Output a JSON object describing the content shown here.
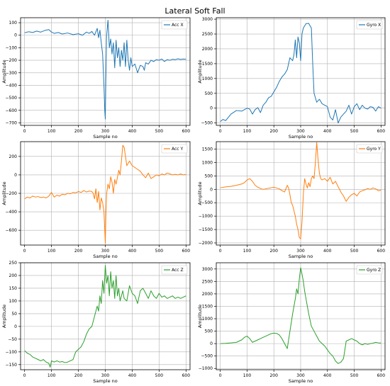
{
  "figure_title": "Lateral Soft Fall",
  "chart_data": [
    {
      "type": "line",
      "legend": "Acc X",
      "legend_position": "top-right",
      "color": "#1f77b4",
      "xlabel": "Sample no",
      "ylabel": "Amplitude",
      "xlim": [
        -15,
        615
      ],
      "ylim": [
        -720,
        140
      ],
      "xticks": [
        0,
        100,
        200,
        300,
        400,
        500,
        600
      ],
      "yticks": [
        100,
        0,
        -100,
        -200,
        -300,
        -400,
        -500,
        -600,
        -700
      ],
      "grid": true,
      "x": [
        0,
        15,
        30,
        45,
        60,
        75,
        90,
        100,
        110,
        125,
        140,
        160,
        180,
        200,
        215,
        230,
        240,
        250,
        260,
        270,
        275,
        280,
        285,
        290,
        295,
        298,
        300,
        302,
        305,
        310,
        315,
        320,
        325,
        330,
        335,
        340,
        345,
        350,
        355,
        360,
        365,
        370,
        375,
        380,
        385,
        390,
        395,
        400,
        410,
        420,
        430,
        440,
        445,
        450,
        460,
        470,
        480,
        490,
        500,
        510,
        520,
        530,
        540,
        550,
        560,
        570,
        580,
        590,
        600
      ],
      "y": [
        20,
        28,
        22,
        33,
        25,
        38,
        45,
        25,
        15,
        22,
        10,
        18,
        5,
        12,
        0,
        25,
        15,
        30,
        0,
        55,
        -20,
        40,
        -60,
        -150,
        -400,
        -600,
        -670,
        -350,
        0,
        120,
        -100,
        -30,
        -150,
        -60,
        -260,
        -40,
        -180,
        -100,
        -250,
        -120,
        -200,
        -60,
        -250,
        -40,
        -200,
        -280,
        -180,
        -250,
        -230,
        -300,
        -240,
        -250,
        -280,
        -220,
        -230,
        -200,
        -210,
        -195,
        -200,
        -190,
        -210,
        -195,
        -200,
        -192,
        -195,
        -188,
        -193,
        -190,
        -192
      ]
    },
    {
      "type": "line",
      "legend": "Gyro X",
      "legend_position": "top-right",
      "color": "#1f77b4",
      "xlabel": "Sample no",
      "ylabel": "Amplitude",
      "xlim": [
        -15,
        615
      ],
      "ylim": [
        -580,
        3050
      ],
      "xticks": [
        0,
        100,
        200,
        300,
        400,
        500,
        600
      ],
      "yticks": [
        3000,
        2500,
        2000,
        1500,
        1000,
        500,
        0,
        -500
      ],
      "grid": true,
      "x": [
        0,
        10,
        20,
        40,
        60,
        80,
        100,
        110,
        120,
        130,
        140,
        150,
        160,
        170,
        180,
        190,
        200,
        210,
        220,
        230,
        240,
        250,
        260,
        270,
        275,
        280,
        285,
        290,
        295,
        300,
        305,
        310,
        320,
        330,
        340,
        345,
        350,
        360,
        370,
        380,
        390,
        400,
        410,
        420,
        430,
        440,
        450,
        460,
        470,
        480,
        490,
        500,
        510,
        520,
        530,
        540,
        550,
        560,
        570,
        580,
        590,
        600
      ],
      "y": [
        -450,
        -380,
        -420,
        -200,
        -80,
        -100,
        0,
        -30,
        -200,
        -50,
        20,
        -150,
        100,
        200,
        350,
        400,
        550,
        700,
        900,
        1050,
        1150,
        1300,
        1700,
        1600,
        1800,
        2300,
        1700,
        2400,
        2200,
        1600,
        2500,
        2700,
        2850,
        2860,
        2700,
        1500,
        500,
        200,
        300,
        150,
        100,
        50,
        -300,
        -400,
        -50,
        -500,
        -300,
        -200,
        -100,
        100,
        -200,
        50,
        150,
        -50,
        100,
        0,
        -30,
        50,
        30,
        -100,
        50,
        0
      ]
    },
    {
      "type": "line",
      "legend": "Acc Y",
      "legend_position": "top-right",
      "color": "#ff7f0e",
      "xlabel": "Sample no",
      "ylabel": "Amplitude",
      "xlim": [
        -15,
        615
      ],
      "ylim": [
        -760,
        360
      ],
      "xticks": [
        0,
        100,
        200,
        300,
        400,
        500,
        600
      ],
      "yticks": [
        200,
        0,
        -200,
        -400,
        -600
      ],
      "grid": true,
      "x": [
        0,
        10,
        20,
        30,
        40,
        50,
        60,
        70,
        80,
        90,
        100,
        110,
        120,
        130,
        140,
        150,
        160,
        170,
        180,
        190,
        200,
        210,
        220,
        230,
        240,
        250,
        255,
        260,
        265,
        270,
        275,
        280,
        285,
        290,
        295,
        298,
        300,
        302,
        305,
        310,
        315,
        320,
        325,
        330,
        335,
        340,
        345,
        350,
        355,
        360,
        365,
        370,
        375,
        380,
        390,
        400,
        410,
        420,
        430,
        440,
        450,
        460,
        470,
        480,
        490,
        500,
        510,
        520,
        530,
        540,
        550,
        560,
        570,
        580,
        590,
        600
      ],
      "y": [
        -260,
        -240,
        -250,
        -230,
        -240,
        -235,
        -245,
        -240,
        -250,
        -230,
        -190,
        -240,
        -220,
        -230,
        -210,
        -215,
        -200,
        -205,
        -190,
        -195,
        -180,
        -190,
        -170,
        -185,
        -175,
        -180,
        -200,
        -260,
        -150,
        -300,
        -180,
        -380,
        -250,
        -300,
        -400,
        -600,
        -740,
        -450,
        -200,
        -100,
        -150,
        -20,
        -80,
        -200,
        -50,
        -100,
        -30,
        50,
        0,
        150,
        320,
        300,
        200,
        100,
        150,
        100,
        80,
        60,
        40,
        0,
        -30,
        20,
        -40,
        -20,
        0,
        -10,
        10,
        0,
        20,
        10,
        0,
        5,
        0,
        10,
        0,
        5
      ]
    },
    {
      "type": "line",
      "legend": "Gyro Y",
      "legend_position": "top-right",
      "color": "#ff7f0e",
      "xlabel": "Sample no",
      "ylabel": "Amplitude",
      "xlim": [
        -15,
        615
      ],
      "ylim": [
        -2080,
        1780
      ],
      "xticks": [
        0,
        100,
        200,
        300,
        400,
        500,
        600
      ],
      "yticks": [
        1500,
        1000,
        500,
        0,
        -500,
        -1000,
        -1500,
        -2000
      ],
      "grid": true,
      "x": [
        0,
        20,
        40,
        60,
        80,
        90,
        100,
        110,
        120,
        130,
        140,
        150,
        160,
        170,
        180,
        190,
        200,
        210,
        220,
        230,
        240,
        250,
        255,
        260,
        265,
        270,
        275,
        280,
        285,
        290,
        295,
        300,
        305,
        310,
        315,
        320,
        325,
        330,
        335,
        340,
        345,
        350,
        355,
        360,
        365,
        370,
        375,
        380,
        390,
        400,
        410,
        420,
        430,
        440,
        450,
        460,
        470,
        480,
        490,
        500,
        510,
        520,
        530,
        540,
        550,
        560,
        570,
        580,
        590,
        600
      ],
      "y": [
        60,
        90,
        110,
        150,
        200,
        250,
        350,
        400,
        300,
        150,
        80,
        30,
        0,
        20,
        40,
        60,
        80,
        50,
        20,
        -50,
        -100,
        150,
        50,
        -200,
        -500,
        -600,
        -800,
        -1000,
        -1300,
        -1500,
        -1800,
        -1850,
        -1200,
        -200,
        400,
        200,
        50,
        250,
        100,
        400,
        500,
        400,
        1000,
        1750,
        1100,
        600,
        400,
        350,
        400,
        300,
        450,
        200,
        300,
        100,
        -100,
        -250,
        -450,
        -300,
        -200,
        -150,
        -250,
        -100,
        -50,
        -20,
        30,
        0,
        50,
        20,
        -50,
        -30
      ]
    },
    {
      "type": "line",
      "legend": "Acc Z",
      "legend_position": "top-right",
      "color": "#2ca02c",
      "xlabel": "Sample no",
      "ylabel": "Amplitude",
      "xlim": [
        -15,
        615
      ],
      "ylim": [
        -170,
        250
      ],
      "xticks": [
        0,
        100,
        200,
        300,
        400,
        500,
        600
      ],
      "yticks": [
        250,
        200,
        150,
        100,
        50,
        0,
        -50,
        -100,
        -150
      ],
      "grid": true,
      "x": [
        0,
        5,
        10,
        20,
        30,
        40,
        50,
        60,
        70,
        80,
        90,
        95,
        100,
        110,
        120,
        130,
        140,
        150,
        160,
        170,
        180,
        190,
        200,
        210,
        220,
        230,
        240,
        250,
        260,
        270,
        275,
        280,
        285,
        290,
        295,
        300,
        305,
        310,
        315,
        320,
        325,
        330,
        335,
        340,
        345,
        350,
        355,
        360,
        365,
        370,
        380,
        390,
        400,
        410,
        420,
        430,
        440,
        450,
        460,
        470,
        480,
        490,
        500,
        510,
        520,
        530,
        540,
        550,
        560,
        570,
        580,
        590,
        600
      ],
      "y": [
        -95,
        -100,
        -105,
        -110,
        -120,
        -125,
        -130,
        -135,
        -130,
        -140,
        -145,
        -160,
        -135,
        -140,
        -135,
        -140,
        -138,
        -142,
        -140,
        -135,
        -130,
        -100,
        -90,
        -80,
        -60,
        -30,
        -10,
        0,
        40,
        80,
        60,
        120,
        90,
        180,
        130,
        240,
        170,
        200,
        120,
        215,
        150,
        180,
        110,
        200,
        120,
        150,
        100,
        120,
        140,
        110,
        100,
        160,
        130,
        120,
        90,
        140,
        150,
        130,
        110,
        140,
        120,
        110,
        130,
        115,
        120,
        110,
        115,
        120,
        110,
        115,
        110,
        115,
        120
      ]
    },
    {
      "type": "line",
      "legend": "Gyro Z",
      "legend_position": "top-right",
      "color": "#2ca02c",
      "xlabel": "Sample no",
      "ylabel": "Amplitude",
      "xlim": [
        -15,
        615
      ],
      "ylim": [
        -1050,
        3250
      ],
      "xticks": [
        0,
        100,
        200,
        300,
        400,
        500,
        600
      ],
      "yticks": [
        3000,
        2500,
        2000,
        1500,
        1000,
        500,
        0,
        -500,
        -1000
      ],
      "grid": true,
      "x": [
        0,
        20,
        40,
        60,
        80,
        90,
        100,
        110,
        120,
        130,
        140,
        150,
        160,
        170,
        180,
        190,
        200,
        210,
        220,
        230,
        240,
        250,
        260,
        270,
        280,
        285,
        290,
        295,
        300,
        305,
        310,
        315,
        320,
        330,
        340,
        350,
        360,
        370,
        380,
        390,
        400,
        410,
        420,
        430,
        440,
        450,
        460,
        470,
        480,
        490,
        500,
        510,
        520,
        530,
        540,
        550,
        560,
        570,
        580,
        590,
        600
      ],
      "y": [
        0,
        10,
        30,
        50,
        150,
        250,
        300,
        200,
        50,
        100,
        150,
        200,
        250,
        300,
        350,
        400,
        420,
        410,
        350,
        200,
        0,
        -200,
        500,
        1200,
        1800,
        2200,
        2000,
        2600,
        3050,
        2800,
        2500,
        2100,
        1800,
        1200,
        700,
        500,
        300,
        100,
        0,
        -100,
        -250,
        -400,
        -500,
        -700,
        -800,
        -750,
        -600,
        100,
        150,
        200,
        150,
        100,
        0,
        -50,
        0,
        -30,
        0,
        20,
        50,
        30,
        20
      ]
    }
  ]
}
